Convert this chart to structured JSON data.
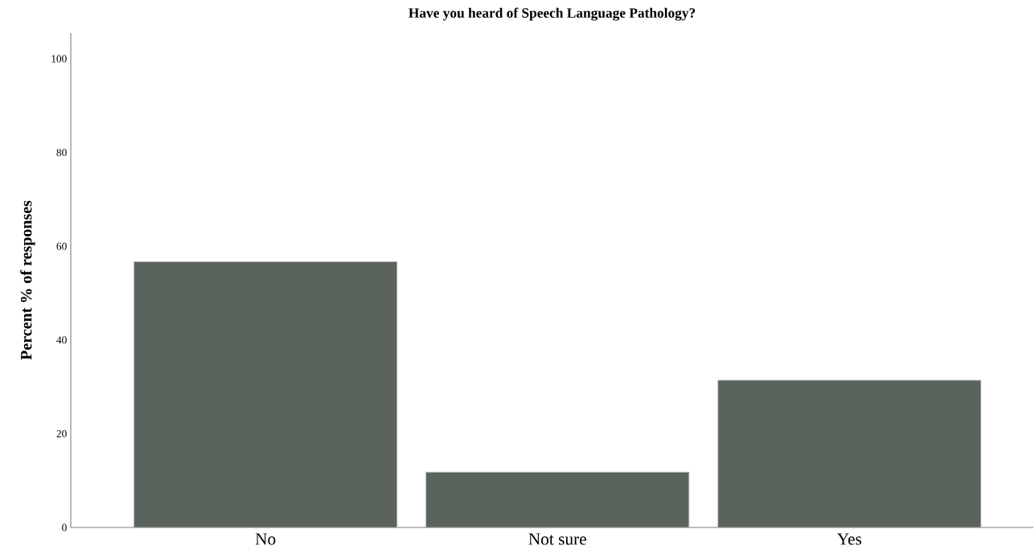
{
  "chart_data": {
    "type": "bar",
    "title": "Have you heard of Speech Language Pathology?",
    "ylabel": "Percent % of responses",
    "categories": [
      "No",
      "Not sure",
      "Yes"
    ],
    "values": [
      56.7,
      11.8,
      31.4
    ],
    "color": "#5a635c",
    "ylim": [
      0,
      105.5
    ],
    "yticks": [
      0,
      20,
      40,
      60,
      80,
      100
    ],
    "grid": false
  }
}
